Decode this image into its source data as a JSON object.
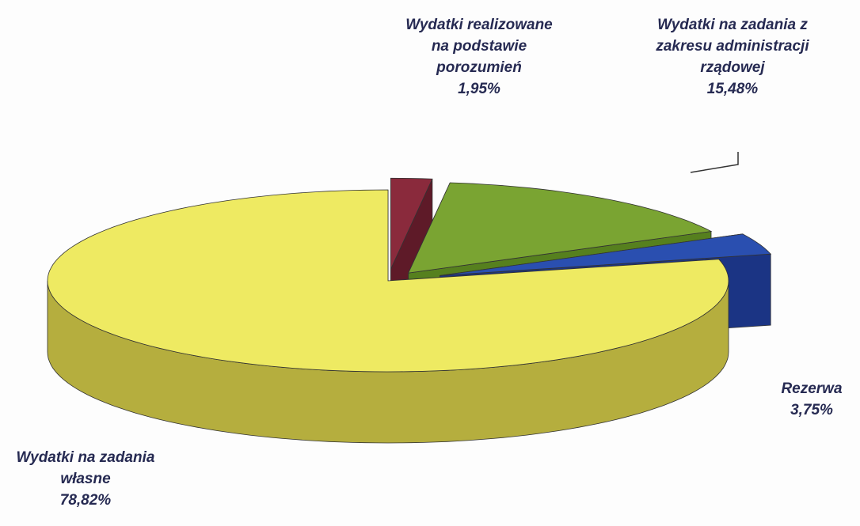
{
  "chart_data": {
    "type": "pie",
    "categories": [
      "Wydatki realizowane na podstawie porozumień",
      "Wydatki na zadania z zakresu administracji rządowej",
      "Rezerwa",
      "Wydatki na zadania własne"
    ],
    "values": [
      1.95,
      15.48,
      3.75,
      78.82
    ],
    "value_labels": [
      "1,95%",
      "15,48%",
      "3,75%",
      "78,82%"
    ],
    "colors": [
      "#8a2a3c",
      "#7aa432",
      "#2a4fb0",
      "#eeea62"
    ]
  }
}
